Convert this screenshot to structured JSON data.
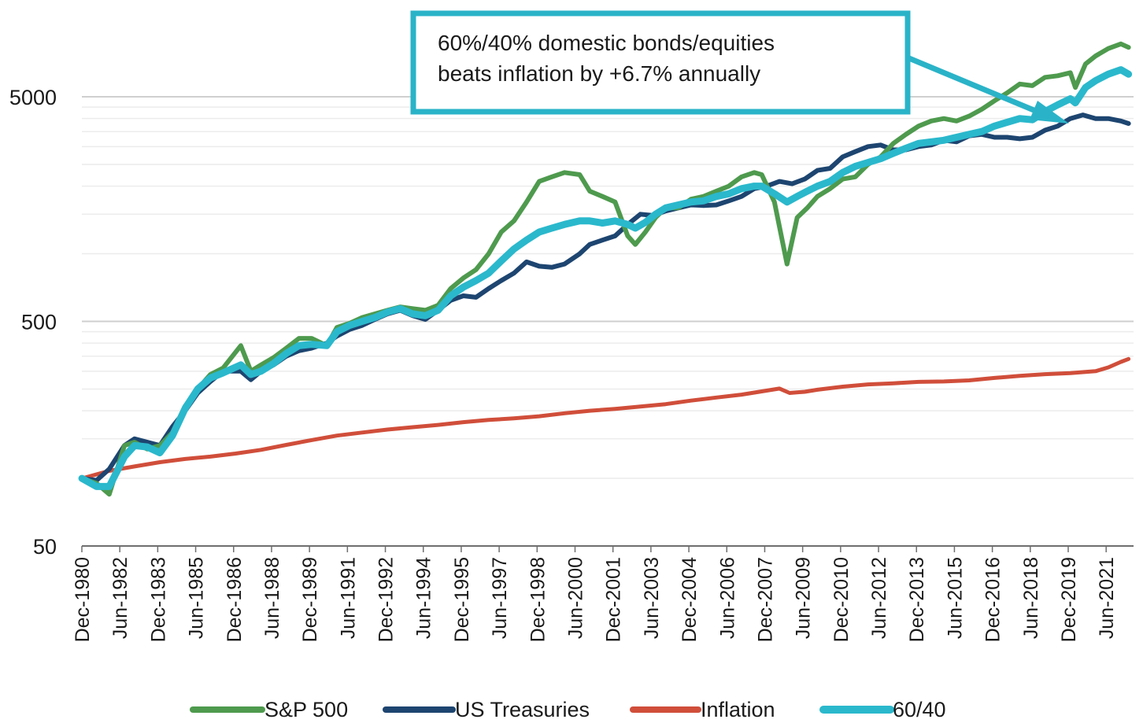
{
  "chart_data": {
    "type": "line",
    "title": "",
    "xlabel": "",
    "ylabel": "",
    "y_scale": "log",
    "ylim": [
      50,
      9000
    ],
    "xlim": [
      "Dec-1980",
      "Dec-2022"
    ],
    "grid": "horizontal",
    "legend_position": "bottom",
    "y_ticks": [
      "50",
      "500",
      "5000"
    ],
    "x_ticks": [
      "Dec-1980",
      "Jun-1982",
      "Dec-1983",
      "Jun-1985",
      "Dec-1986",
      "Jun-1988",
      "Dec-1989",
      "Jun-1991",
      "Dec-1992",
      "Jun-1994",
      "Dec-1995",
      "Jun-1997",
      "Dec-1998",
      "Jun-2000",
      "Dec-2001",
      "Jun-2003",
      "Dec-2004",
      "Jun-2006",
      "Dec-2007",
      "Jun-2009",
      "Dec-2010",
      "Jun-2012",
      "Dec-2013",
      "Jun-2015",
      "Dec-2016",
      "Jun-2018",
      "Dec-2019",
      "Jun-2021"
    ],
    "annotation": {
      "lines": [
        "60%/40% domestic bonds/equities",
        "beats inflation by +6.7% annually"
      ],
      "border_color": "#2ab3c8",
      "arrow_points_to": "60/40"
    },
    "series": [
      {
        "name": "S&P 500",
        "color": "#4e9a4e",
        "x": [
          1980.92,
          1981.5,
          1982.0,
          1982.6,
          1983.0,
          1983.5,
          1984.0,
          1984.5,
          1985.0,
          1985.5,
          1986.0,
          1986.5,
          1987.2,
          1987.6,
          1988.0,
          1988.5,
          1989.0,
          1989.5,
          1990.0,
          1990.6,
          1991.0,
          1991.5,
          1992.0,
          1992.5,
          1993.0,
          1993.5,
          1994.0,
          1994.5,
          1995.0,
          1995.5,
          1996.0,
          1996.5,
          1997.0,
          1997.5,
          1998.0,
          1998.5,
          1999.0,
          1999.5,
          2000.0,
          2000.6,
          2001.0,
          2001.5,
          2002.0,
          2002.5,
          2002.8,
          2003.2,
          2003.6,
          2004.0,
          2004.5,
          2005.0,
          2005.5,
          2006.0,
          2006.5,
          2007.0,
          2007.5,
          2007.8,
          2008.3,
          2008.8,
          2009.2,
          2009.6,
          2010.0,
          2010.5,
          2011.0,
          2011.5,
          2012.0,
          2012.5,
          2013.0,
          2013.5,
          2014.0,
          2014.5,
          2015.0,
          2015.5,
          2016.0,
          2016.5,
          2017.0,
          2017.5,
          2018.0,
          2018.5,
          2019.0,
          2019.5,
          2020.0,
          2020.2,
          2020.6,
          2021.0,
          2021.5,
          2022.0,
          2022.3
        ],
        "values": [
          100,
          95,
          85,
          140,
          145,
          135,
          140,
          160,
          210,
          250,
          290,
          310,
          390,
          300,
          320,
          345,
          380,
          420,
          420,
          390,
          470,
          490,
          520,
          540,
          560,
          580,
          570,
          560,
          590,
          700,
          780,
          850,
          1000,
          1250,
          1400,
          1700,
          2100,
          2200,
          2300,
          2250,
          1900,
          1800,
          1700,
          1200,
          1100,
          1250,
          1450,
          1600,
          1600,
          1750,
          1800,
          1900,
          2000,
          2200,
          2300,
          2250,
          1700,
          900,
          1450,
          1600,
          1800,
          1950,
          2150,
          2200,
          2500,
          2700,
          3100,
          3400,
          3700,
          3900,
          4000,
          3900,
          4100,
          4400,
          4800,
          5200,
          5700,
          5600,
          6100,
          6200,
          6400,
          5500,
          7000,
          7600,
          8200,
          8600,
          8300
        ]
      },
      {
        "name": "US Treasuries",
        "color": "#1d4570",
        "x": [
          1980.92,
          1981.5,
          1982.0,
          1982.6,
          1983.0,
          1983.5,
          1984.0,
          1984.5,
          1985.0,
          1985.5,
          1986.0,
          1986.5,
          1987.2,
          1987.6,
          1988.0,
          1988.5,
          1989.0,
          1989.5,
          1990.0,
          1990.6,
          1991.0,
          1991.5,
          1992.0,
          1992.5,
          1993.0,
          1993.5,
          1994.0,
          1994.5,
          1995.0,
          1995.5,
          1996.0,
          1996.5,
          1997.0,
          1997.5,
          1998.0,
          1998.5,
          1999.0,
          1999.5,
          2000.0,
          2000.6,
          2001.0,
          2001.5,
          2002.0,
          2002.5,
          2003.0,
          2003.5,
          2004.0,
          2004.5,
          2005.0,
          2005.5,
          2006.0,
          2006.5,
          2007.0,
          2007.5,
          2008.0,
          2008.5,
          2009.0,
          2009.5,
          2010.0,
          2010.5,
          2011.0,
          2011.5,
          2012.0,
          2012.5,
          2013.0,
          2013.5,
          2014.0,
          2014.5,
          2015.0,
          2015.5,
          2016.0,
          2016.5,
          2017.0,
          2017.5,
          2018.0,
          2018.5,
          2019.0,
          2019.5,
          2020.0,
          2020.5,
          2021.0,
          2021.5,
          2022.0,
          2022.3
        ],
        "values": [
          100,
          98,
          110,
          140,
          150,
          145,
          140,
          170,
          200,
          240,
          270,
          300,
          300,
          275,
          300,
          320,
          350,
          370,
          380,
          400,
          430,
          460,
          480,
          510,
          540,
          560,
          530,
          510,
          560,
          620,
          650,
          640,
          700,
          760,
          820,
          920,
          880,
          870,
          900,
          1000,
          1100,
          1150,
          1200,
          1350,
          1500,
          1480,
          1550,
          1600,
          1650,
          1640,
          1650,
          1720,
          1800,
          1950,
          2000,
          2100,
          2050,
          2150,
          2350,
          2400,
          2700,
          2850,
          3000,
          3050,
          2900,
          2900,
          3000,
          3050,
          3200,
          3150,
          3350,
          3400,
          3300,
          3300,
          3250,
          3300,
          3550,
          3700,
          4000,
          4150,
          4000,
          4000,
          3900,
          3800
        ]
      },
      {
        "name": "Inflation",
        "color": "#d04e3a",
        "x": [
          1980.92,
          1982.0,
          1983.0,
          1984.0,
          1985.0,
          1986.0,
          1987.0,
          1988.0,
          1989.0,
          1990.0,
          1991.0,
          1992.0,
          1993.0,
          1994.0,
          1995.0,
          1996.0,
          1997.0,
          1998.0,
          1999.0,
          2000.0,
          2001.0,
          2002.0,
          2003.0,
          2004.0,
          2005.0,
          2006.0,
          2007.0,
          2008.5,
          2008.9,
          2009.5,
          2010.0,
          2011.0,
          2012.0,
          2013.0,
          2014.0,
          2015.0,
          2016.0,
          2017.0,
          2018.0,
          2019.0,
          2020.0,
          2021.0,
          2021.5,
          2022.0,
          2022.3
        ],
        "values": [
          100,
          108,
          113,
          118,
          122,
          125,
          129,
          134,
          141,
          148,
          155,
          160,
          165,
          169,
          173,
          178,
          182,
          185,
          189,
          195,
          200,
          204,
          209,
          214,
          222,
          229,
          236,
          251,
          240,
          243,
          248,
          256,
          262,
          265,
          269,
          270,
          273,
          280,
          286,
          291,
          294,
          300,
          312,
          330,
          340
        ]
      },
      {
        "name": "60/40",
        "color": "#2ab8cc",
        "x": [
          1980.92,
          1981.5,
          1982.0,
          1982.6,
          1983.0,
          1983.5,
          1984.0,
          1984.5,
          1985.0,
          1985.5,
          1986.0,
          1986.5,
          1987.2,
          1987.6,
          1988.0,
          1988.5,
          1989.0,
          1989.5,
          1990.0,
          1990.6,
          1991.0,
          1991.5,
          1992.0,
          1992.5,
          1993.0,
          1993.5,
          1994.0,
          1994.5,
          1995.0,
          1995.5,
          1996.0,
          1996.5,
          1997.0,
          1997.5,
          1998.0,
          1998.5,
          1999.0,
          1999.5,
          2000.0,
          2000.6,
          2001.0,
          2001.5,
          2002.0,
          2002.5,
          2002.8,
          2003.2,
          2003.6,
          2004.0,
          2004.5,
          2005.0,
          2005.5,
          2006.0,
          2006.5,
          2007.0,
          2007.5,
          2007.8,
          2008.3,
          2008.8,
          2009.2,
          2009.6,
          2010.0,
          2010.5,
          2011.0,
          2011.5,
          2012.0,
          2012.5,
          2013.0,
          2013.5,
          2014.0,
          2014.5,
          2015.0,
          2015.5,
          2016.0,
          2016.5,
          2017.0,
          2017.5,
          2018.0,
          2018.5,
          2019.0,
          2019.5,
          2020.0,
          2020.2,
          2020.6,
          2021.0,
          2021.5,
          2022.0,
          2022.3
        ],
        "values": [
          100,
          92,
          92,
          125,
          140,
          138,
          130,
          155,
          205,
          250,
          280,
          295,
          320,
          290,
          300,
          325,
          360,
          390,
          395,
          390,
          450,
          480,
          500,
          520,
          550,
          570,
          540,
          530,
          560,
          650,
          710,
          760,
          820,
          930,
          1050,
          1150,
          1250,
          1300,
          1350,
          1400,
          1400,
          1370,
          1400,
          1350,
          1300,
          1380,
          1500,
          1600,
          1650,
          1700,
          1720,
          1800,
          1850,
          1950,
          2000,
          2000,
          1850,
          1700,
          1800,
          1900,
          2000,
          2100,
          2300,
          2450,
          2550,
          2650,
          2800,
          2950,
          3100,
          3150,
          3200,
          3300,
          3400,
          3500,
          3700,
          3850,
          4000,
          3950,
          4300,
          4600,
          4900,
          4700,
          5500,
          5900,
          6300,
          6600,
          6300
        ]
      }
    ]
  }
}
